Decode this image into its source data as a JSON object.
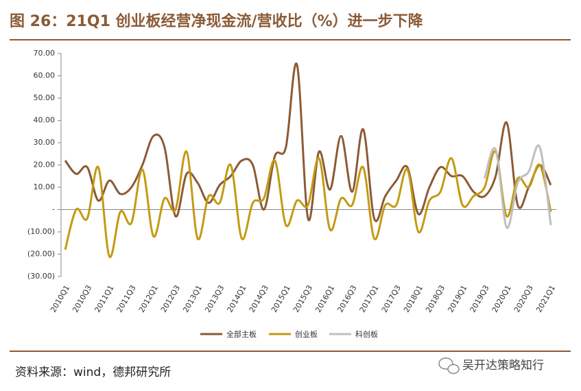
{
  "chart_data": {
    "type": "line",
    "title": "图 26：21Q1 创业板经营净现金流/营收比（%）进一步下降",
    "source": "资料来源：wind，德邦研究所",
    "watermark": "吴开达策略知行",
    "categories": [
      "2010Q1",
      null,
      "2010Q3",
      null,
      "2011Q1",
      null,
      "2011Q3",
      null,
      "2012Q1",
      null,
      "2012Q3",
      null,
      "2013Q1",
      null,
      "2013Q3",
      null,
      "2014Q1",
      null,
      "2014Q3",
      null,
      "2015Q1",
      null,
      "2015Q3",
      null,
      "2016Q1",
      null,
      "2016Q3",
      null,
      "2017Q1",
      null,
      "2017Q3",
      null,
      "2018Q1",
      null,
      "2018Q3",
      null,
      "2019Q1",
      null,
      "2019Q3",
      null,
      "2020Q1",
      null,
      "2020Q3",
      null,
      "2021Q1"
    ],
    "series": [
      {
        "name": "全部主板",
        "color": "#8b5a35",
        "values": [
          22,
          16,
          19,
          4,
          13,
          7,
          10,
          20,
          33,
          28,
          -3,
          16,
          12,
          3,
          11,
          15,
          22,
          20,
          0,
          24,
          28,
          65,
          -4,
          26,
          9,
          33,
          8,
          36,
          -4,
          6,
          13,
          19,
          -2,
          10,
          19,
          15,
          15,
          8,
          6,
          15,
          39,
          2,
          10,
          20,
          11
        ]
      },
      {
        "name": "创业板",
        "color": "#c39a12",
        "values": [
          -18,
          0,
          -4,
          19,
          -21,
          -1,
          -6,
          18,
          -12,
          5,
          0,
          26,
          -13,
          6,
          3,
          20,
          -13,
          3,
          5,
          22,
          -7,
          4,
          2,
          23,
          -9,
          5,
          2,
          19,
          -13,
          2,
          2,
          18,
          -10,
          4,
          8,
          23,
          2,
          6,
          10,
          26,
          -3,
          14,
          10,
          20,
          -1
        ]
      },
      {
        "name": "科创板",
        "color": "#bfbfbf",
        "values": [
          null,
          null,
          null,
          null,
          null,
          null,
          null,
          null,
          null,
          null,
          null,
          null,
          null,
          null,
          null,
          null,
          null,
          null,
          null,
          null,
          null,
          null,
          null,
          null,
          null,
          null,
          null,
          null,
          null,
          null,
          null,
          null,
          null,
          null,
          null,
          null,
          null,
          null,
          14,
          27,
          -8,
          12,
          17,
          28,
          -7
        ]
      }
    ],
    "ylim": [
      -30,
      70
    ],
    "yticks": [
      {
        "value": 70,
        "label": "70.00"
      },
      {
        "value": 60,
        "label": "60.00"
      },
      {
        "value": 50,
        "label": "50.00"
      },
      {
        "value": 40,
        "label": "40.00"
      },
      {
        "value": 30,
        "label": "30.00"
      },
      {
        "value": 20,
        "label": "20.00"
      },
      {
        "value": 10,
        "label": "10.00"
      },
      {
        "value": 0,
        "label": "-"
      },
      {
        "value": -10,
        "label": "(10.00)"
      },
      {
        "value": -20,
        "label": "(20.00)"
      },
      {
        "value": -30,
        "label": "(30.00)"
      }
    ],
    "grid": false
  }
}
